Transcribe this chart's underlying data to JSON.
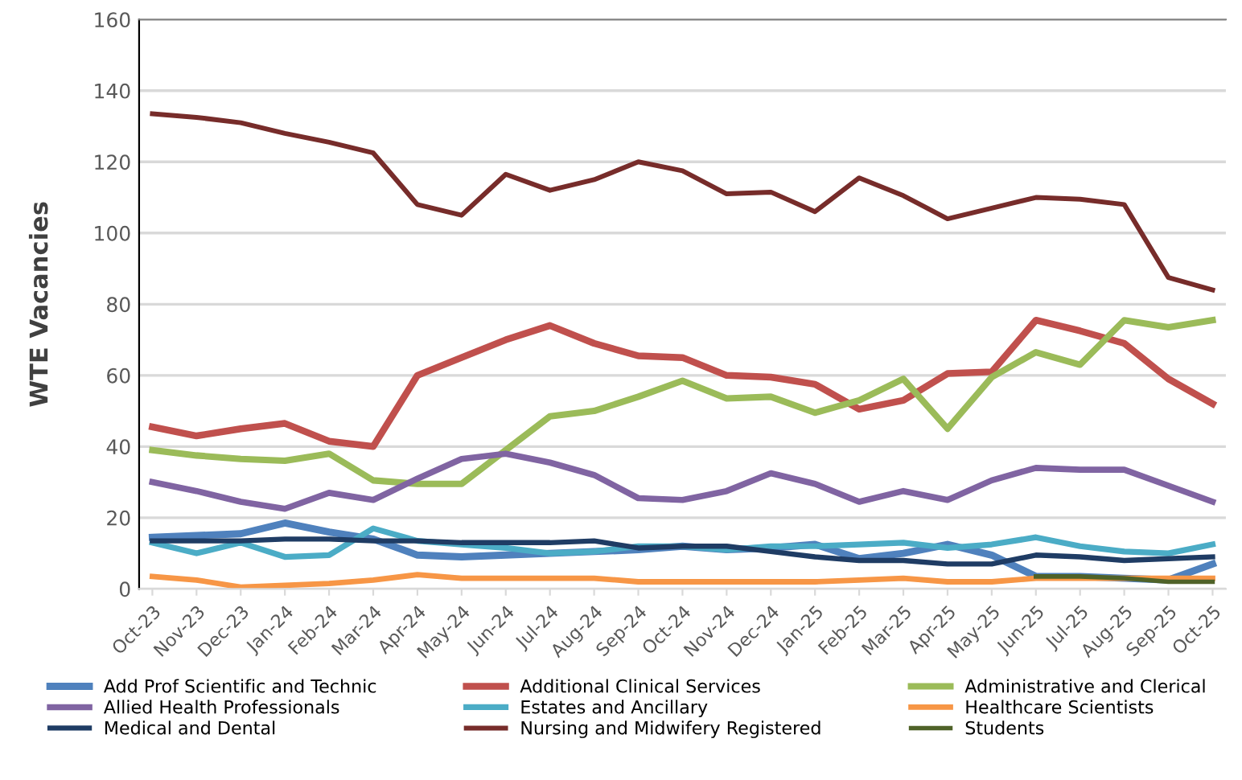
{
  "chart_data": {
    "type": "line",
    "ylabel": "WTE Vacancies",
    "categories": [
      "Oct-23",
      "Nov-23",
      "Dec-23",
      "Jan-24",
      "Feb-24",
      "Mar-24",
      "Apr-24",
      "May-24",
      "Jun-24",
      "Jul-24",
      "Aug-24",
      "Sep-24",
      "Oct-24",
      "Nov-24",
      "Dec-24",
      "Jan-25",
      "Feb-25",
      "Mar-25",
      "Apr-25",
      "May-25",
      "Jun-25",
      "Jul-25",
      "Aug-25",
      "Sep-25",
      "Oct-25"
    ],
    "series": [
      {
        "name": "Add Prof Scientific and Technic",
        "color": "#4f81bd",
        "values": [
          14.5,
          15,
          15.5,
          18.5,
          16,
          14,
          9.5,
          9,
          9.5,
          10,
          10.5,
          11,
          12,
          11,
          11.5,
          12.5,
          8.5,
          10,
          12.5,
          9.5,
          3.5,
          3.5,
          3,
          2.5,
          7
        ]
      },
      {
        "name": "Additional Clinical Services",
        "color": "#c0504d",
        "values": [
          45.5,
          43,
          45,
          46.5,
          41.5,
          40,
          60,
          65,
          70,
          74,
          69,
          65.5,
          65,
          60,
          59.5,
          57.5,
          50.5,
          53,
          60.5,
          61,
          75.5,
          72.5,
          69,
          59,
          52
        ]
      },
      {
        "name": "Administrative and Clerical",
        "color": "#9bbb59",
        "values": [
          39,
          37.5,
          36.5,
          36,
          38,
          30.5,
          29.5,
          29.5,
          39,
          48.5,
          50,
          54,
          58.5,
          53.5,
          54,
          49.5,
          53,
          59,
          45,
          59.5,
          66.5,
          63,
          75.5,
          73.5,
          75.5
        ]
      },
      {
        "name": "Allied Health Professionals",
        "color": "#8064a2",
        "values": [
          30,
          27.5,
          24.5,
          22.5,
          27,
          25,
          31,
          36.5,
          38,
          35.5,
          32,
          25.5,
          25,
          27.5,
          32.5,
          29.5,
          24.5,
          27.5,
          25,
          30.5,
          34,
          33.5,
          33.5,
          29,
          24.5
        ]
      },
      {
        "name": "Estates and Ancillary",
        "color": "#4bacc6",
        "values": [
          13,
          10,
          13,
          9,
          9.5,
          17,
          13.5,
          12.5,
          11.5,
          10,
          10.5,
          12,
          12,
          11,
          12,
          12,
          12.5,
          13,
          11.5,
          12.5,
          14.5,
          12,
          10.5,
          10,
          12.5
        ]
      },
      {
        "name": "Healthcare Scientists",
        "color": "#f79646",
        "values": [
          3.5,
          2.5,
          0.5,
          1,
          1.5,
          2.5,
          4,
          3,
          3,
          3,
          3,
          2,
          2,
          2,
          2,
          2,
          2.5,
          3,
          2,
          2,
          3,
          3,
          3,
          3,
          3
        ]
      },
      {
        "name": "Medical and Dental",
        "color": "#1f3c64",
        "values": [
          13.5,
          13.5,
          13.5,
          14,
          14,
          13.5,
          13.5,
          13,
          13,
          13,
          13.5,
          11.5,
          12,
          12,
          10.5,
          9,
          8,
          8,
          7,
          7,
          9.5,
          9,
          8,
          8.5,
          9
        ]
      },
      {
        "name": "Nursing and Midwifery Registered",
        "color": "#772c2a",
        "values": [
          133.5,
          132.5,
          131,
          128,
          125.5,
          122.5,
          108,
          105,
          116.5,
          112,
          115,
          120,
          117.5,
          111,
          111.5,
          106,
          115.5,
          110.5,
          104,
          107,
          110,
          109.5,
          108,
          87.5,
          84
        ]
      },
      {
        "name": "Students",
        "color": "#4f6228",
        "values": [
          null,
          null,
          null,
          null,
          null,
          null,
          null,
          null,
          null,
          null,
          null,
          null,
          null,
          null,
          null,
          null,
          null,
          null,
          null,
          null,
          3.5,
          3.5,
          3,
          2,
          2
        ]
      }
    ],
    "ylim": [
      0,
      160
    ],
    "yticks": [
      0,
      20,
      40,
      60,
      80,
      100,
      120,
      140,
      160
    ],
    "grid": "y",
    "legend": "bottom",
    "marker": "none",
    "line_style": "solid"
  }
}
